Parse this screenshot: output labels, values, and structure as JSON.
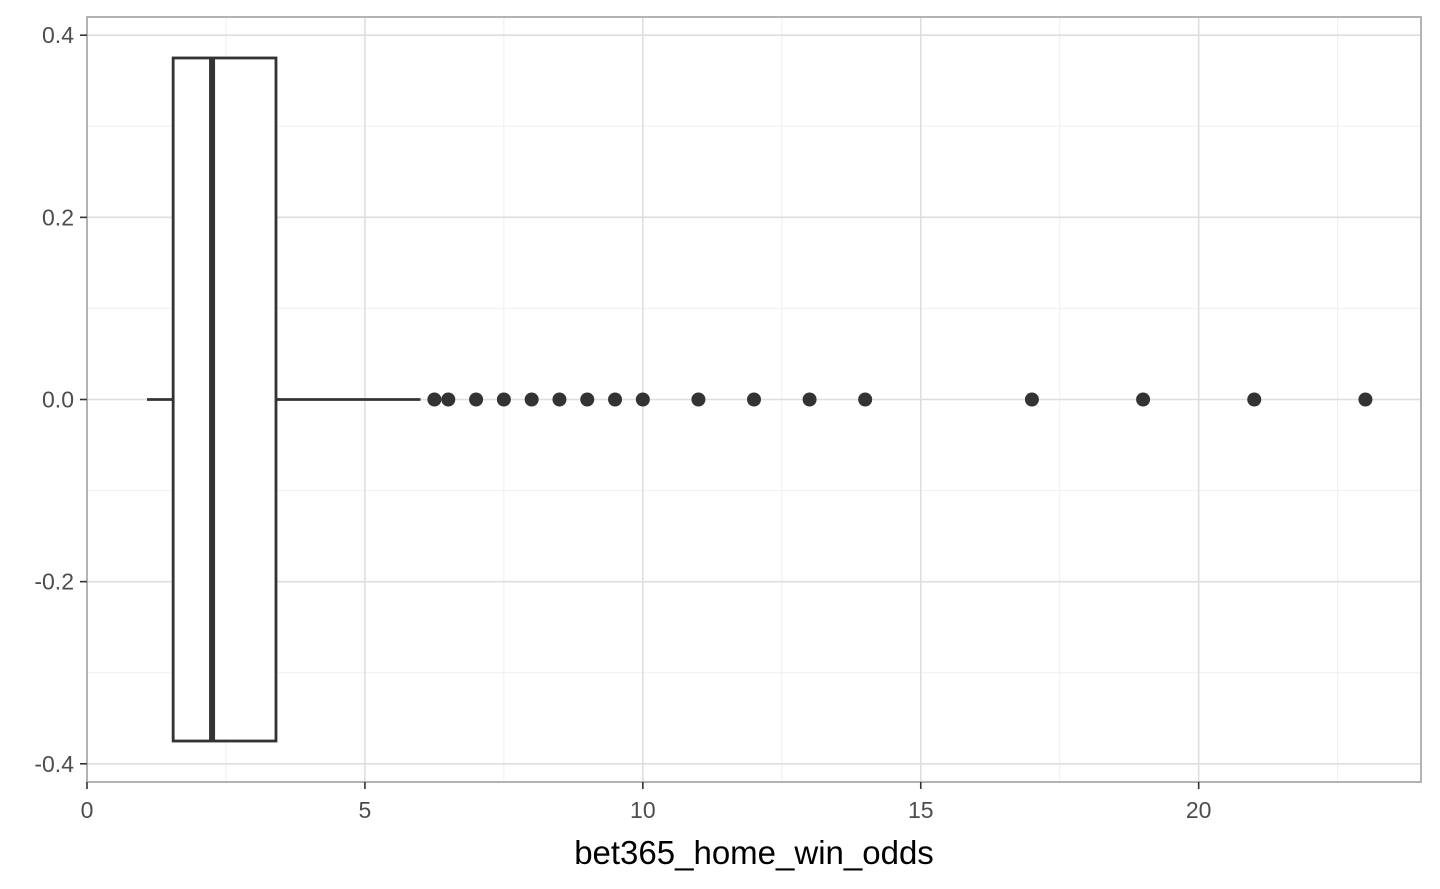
{
  "chart_data": {
    "type": "boxplot",
    "title": "",
    "xlabel": "bet365_home_win_odds",
    "ylabel": "",
    "xlim": [
      0,
      24
    ],
    "ylim": [
      -0.42,
      0.42
    ],
    "x_ticks": [
      0,
      5,
      10,
      15,
      20
    ],
    "x_tick_labels": [
      "0",
      "5",
      "10",
      "15",
      "20"
    ],
    "y_ticks": [
      -0.4,
      -0.2,
      0.0,
      0.2,
      0.4
    ],
    "y_tick_labels": [
      "-0.4",
      "-0.2",
      "0.0",
      "0.2",
      "0.4"
    ],
    "grid": true,
    "box": {
      "whisker_low": 1.08,
      "q1": 1.55,
      "median": 2.25,
      "q3": 3.4,
      "whisker_high": 6.0,
      "y_center": 0.0,
      "half_width": 0.375
    },
    "outliers": [
      6.25,
      6.5,
      7.0,
      7.5,
      8.0,
      8.5,
      9.0,
      9.5,
      10.0,
      11.0,
      12.0,
      13.0,
      14.0,
      17.0,
      19.0,
      21.0,
      23.0
    ],
    "colors": {
      "box_stroke": "#333333",
      "box_fill": "#ffffff",
      "outlier": "#333333",
      "grid_major": "#dedede",
      "grid_minor": "#efefef",
      "panel_border": "#b3b3b3"
    }
  }
}
